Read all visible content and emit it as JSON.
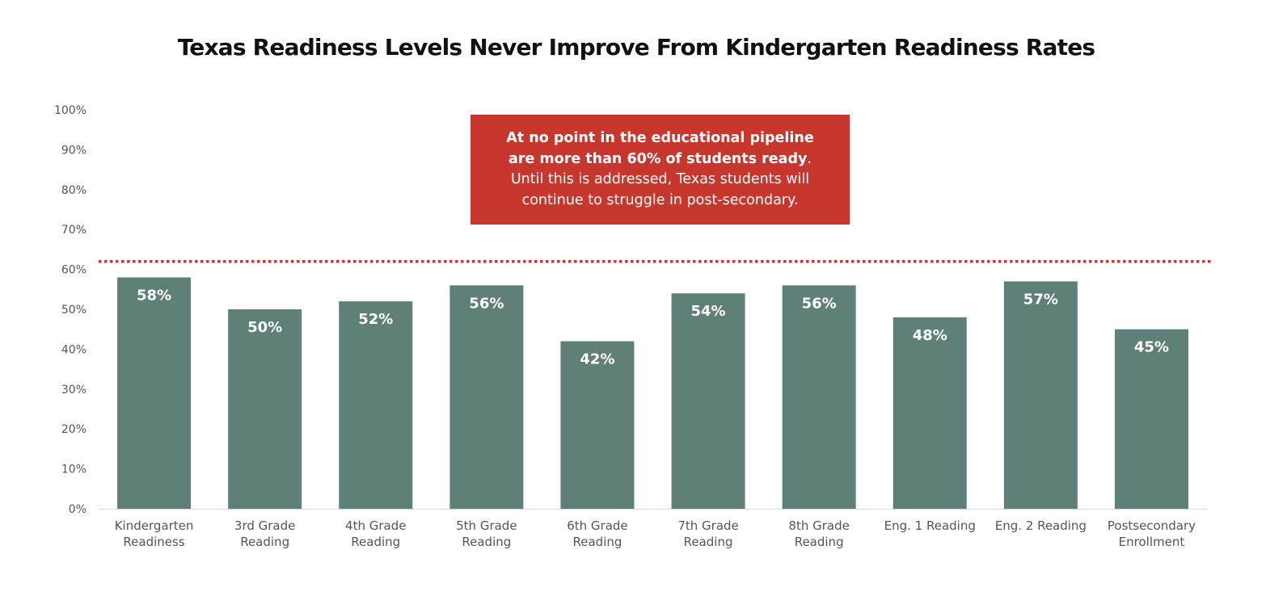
{
  "chart_data": {
    "type": "bar",
    "title": "Texas Readiness Levels Never Improve From Kindergarten Readiness Rates",
    "xlabel": "",
    "ylabel": "",
    "ylim": [
      0,
      100
    ],
    "y_ticks": [
      "0%",
      "10%",
      "20%",
      "30%",
      "40%",
      "50%",
      "60%",
      "70%",
      "80%",
      "90%",
      "100%"
    ],
    "categories": [
      [
        "Kindergarten",
        "Readiness"
      ],
      [
        "3rd Grade",
        "Reading"
      ],
      [
        "4th Grade",
        "Reading"
      ],
      [
        "5th Grade",
        "Reading"
      ],
      [
        "6th Grade",
        "Reading"
      ],
      [
        "7th Grade",
        "Reading"
      ],
      [
        "8th Grade",
        "Reading"
      ],
      [
        "Eng. 1 Reading"
      ],
      [
        "Eng. 2 Reading"
      ],
      [
        "Postsecondary",
        "Enrollment"
      ]
    ],
    "values": [
      58,
      50,
      52,
      56,
      42,
      54,
      56,
      48,
      57,
      45
    ],
    "data_labels": [
      "58%",
      "50%",
      "52%",
      "56%",
      "42%",
      "54%",
      "56%",
      "48%",
      "57%",
      "45%"
    ],
    "reference_line": {
      "value": 62,
      "style": "dotted",
      "color": "#c8372d"
    },
    "bar_color": "#5f8079",
    "grid": false,
    "legend": "none"
  },
  "callout": {
    "bold_line_1": "At no point in the educational pipeline",
    "bold_line_2": "are more than 60% of students ready",
    "period": ".",
    "normal_line_1": "Until this is addressed, Texas students will",
    "normal_line_2": "continue to struggle in post-secondary.",
    "background_color": "#c8372d"
  }
}
